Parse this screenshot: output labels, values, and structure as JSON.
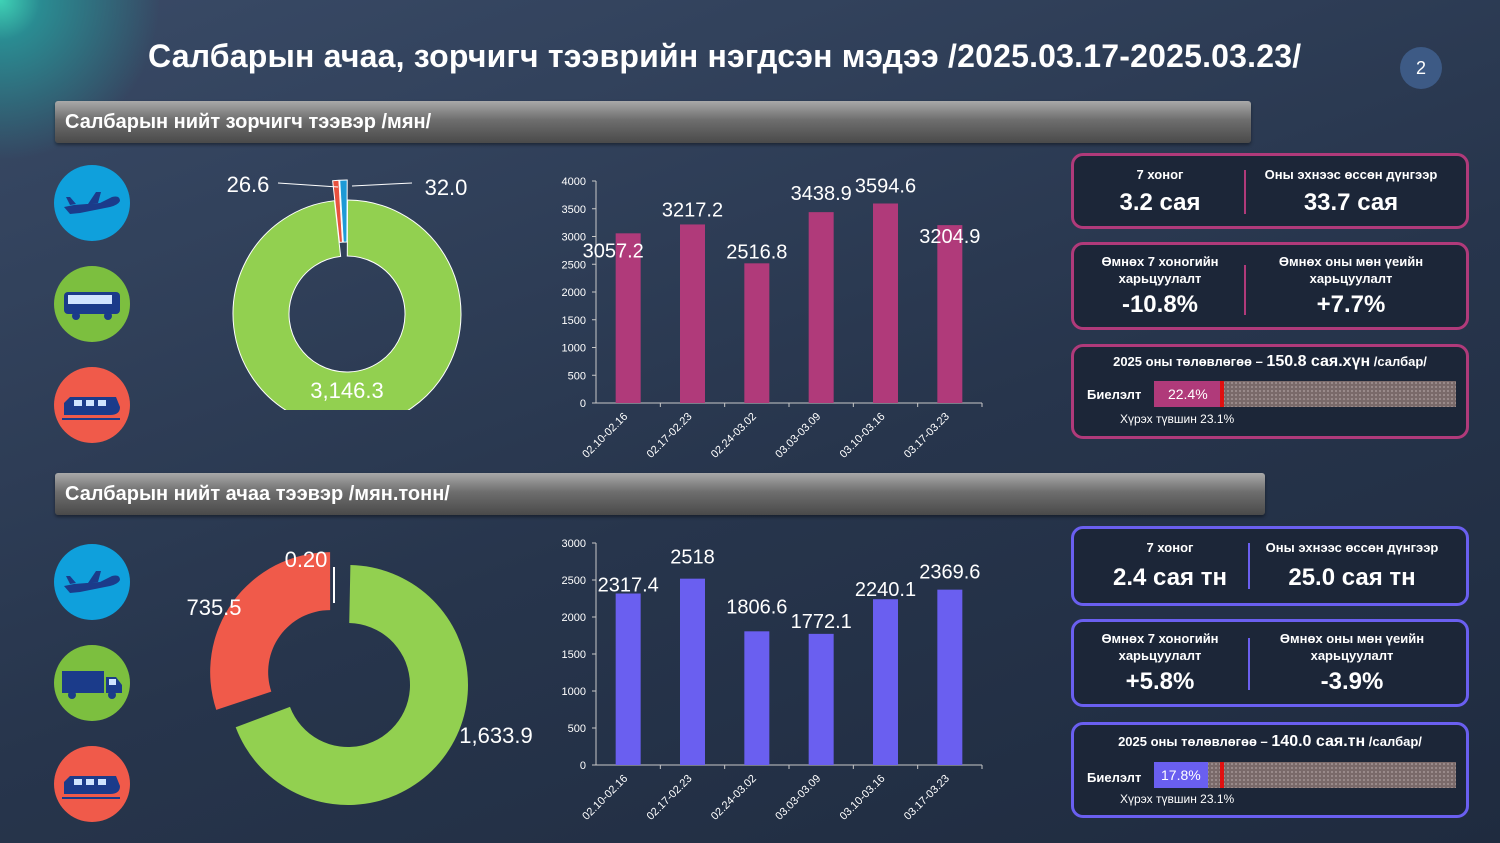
{
  "header": {
    "title": "Салбарын ачаа, зорчигч тээврийн нэгдсэн мэдээ /2025.03.17-2025.03.23/",
    "page_number": "2"
  },
  "passenger": {
    "section_title": "Салбарын нийт зорчигч тээвэр /мян/",
    "icons": [
      "airplane-icon",
      "bus-icon",
      "train-icon"
    ],
    "kpi_week_label": "7 хоног",
    "kpi_week_value": "3.2 сая",
    "kpi_ytd_label": "Оны эхнээс өссөн дүнгээр",
    "kpi_ytd_value": "33.7 сая",
    "cmp_week_label_1": "Өмнөх 7 хоногийн",
    "cmp_week_label_2": "харьцуулалт",
    "cmp_week_value": "-10.8%",
    "cmp_year_label_1": "Өмнөх оны мөн үеийн",
    "cmp_year_label_2": "харьцуулалт",
    "cmp_year_value": "+7.7%",
    "plan_prefix": "2025 оны төлөвлөгөө – ",
    "plan_value": "150.8 сая.хүн",
    "plan_suffix": " /салбар/",
    "progress_label": "Биелэлт",
    "progress_value": "22.4%",
    "progress_fraction": 0.224,
    "target_label": "Хүрэх түвшин 23.1%",
    "target_fraction": 0.231,
    "accent": "#b03a7a"
  },
  "cargo": {
    "section_title": "Салбарын нийт ачаа тээвэр /мян.тонн/",
    "icons": [
      "airplane-icon",
      "truck-icon",
      "train-icon"
    ],
    "kpi_week_label": "7 хоног",
    "kpi_week_value": "2.4 сая тн",
    "kpi_ytd_label": "Оны эхнээс өссөн дүнгээр",
    "kpi_ytd_value": "25.0 сая тн",
    "cmp_week_label_1": "Өмнөх 7 хоногийн",
    "cmp_week_label_2": "харьцуулалт",
    "cmp_week_value": "+5.8%",
    "cmp_year_label_1": "Өмнөх оны мөн үеийн",
    "cmp_year_label_2": "харьцуулалт",
    "cmp_year_value": "-3.9%",
    "plan_prefix": "2025 оны төлөвлөгөө – ",
    "plan_value": "140.0 сая.тн",
    "plan_suffix": " /салбар/",
    "progress_label": "Биелэлт",
    "progress_value": "17.8%",
    "progress_fraction": 0.178,
    "target_label": "Хүрэх түвшин 23.1%",
    "target_fraction": 0.231,
    "accent": "#6a5ff0"
  },
  "chart_data": [
    {
      "type": "pie",
      "variant": "donut",
      "labels": [
        "26.6",
        "32.0",
        "3,146.3"
      ],
      "values": [
        26.6,
        32.0,
        3146.3
      ],
      "colors": [
        "#e8513e",
        "#1e9ad6",
        "#92d050"
      ]
    },
    {
      "type": "bar",
      "categories": [
        "02.10-02.16",
        "02.17-02.23",
        "02.24-03.02",
        "03.03-03.09",
        "03.10-03.16",
        "03.17-03.23"
      ],
      "values": [
        3057.2,
        3217.2,
        2516.8,
        3438.9,
        3594.6,
        3204.9
      ],
      "ylim": [
        0,
        4000
      ],
      "yticks": [
        0,
        500,
        1000,
        1500,
        2000,
        2500,
        3000,
        3500,
        4000
      ],
      "color": "#b03a7a"
    },
    {
      "type": "pie",
      "variant": "donut",
      "labels": [
        "0.20",
        "735.5",
        "1,633.9"
      ],
      "values": [
        0.2,
        735.5,
        1633.9
      ],
      "colors": [
        "#1e9ad6",
        "#f05a4a",
        "#92d050"
      ]
    },
    {
      "type": "bar",
      "categories": [
        "02.10-02.16",
        "02.17-02.23",
        "02.24-03.02",
        "03.03-03.09",
        "03.10-03.16",
        "03.17-03.23"
      ],
      "values": [
        2317.4,
        2518,
        1806.6,
        1772.1,
        2240.1,
        2369.6
      ],
      "ylim": [
        0,
        3000
      ],
      "yticks": [
        0,
        500,
        1000,
        1500,
        2000,
        2500,
        3000
      ],
      "color": "#6a5ff0"
    }
  ]
}
